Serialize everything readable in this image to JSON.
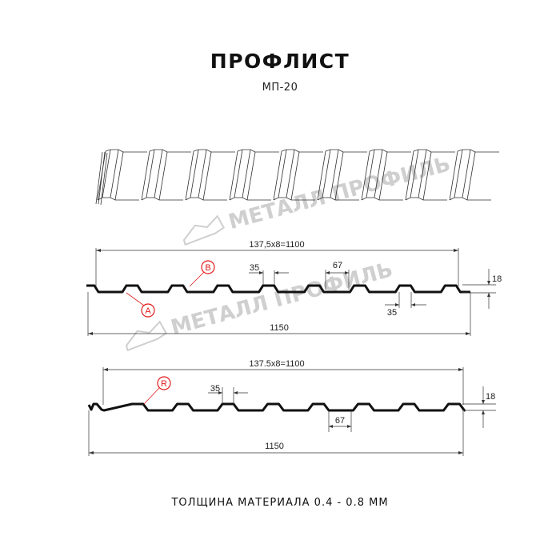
{
  "header": {
    "title": "ПРОФЛИСТ",
    "subtitle": "МП-20"
  },
  "watermark": "МЕТАЛЛ ПРОФИЛЬ",
  "profile_1": {
    "pitch_label": "137,5x8=1100",
    "width_label": "1150",
    "top_width_label": "35",
    "bottom_width_label": "35",
    "groove_label": "67",
    "height_label": "18",
    "callouts": [
      "A",
      "B"
    ]
  },
  "profile_2": {
    "pitch_label": "137.5x8=1100",
    "width_label": "1150",
    "top_width_label": "35",
    "groove_label": "67",
    "height_label": "18",
    "callouts": [
      "R"
    ]
  },
  "footer": {
    "thickness": "ТОЛЩИНА МАТЕРИАЛА 0.4 - 0.8 ММ"
  },
  "colors": {
    "line": "#111111",
    "dimension": "#333333",
    "callout": "#e21b1b",
    "watermark": "#cfcfcf"
  }
}
